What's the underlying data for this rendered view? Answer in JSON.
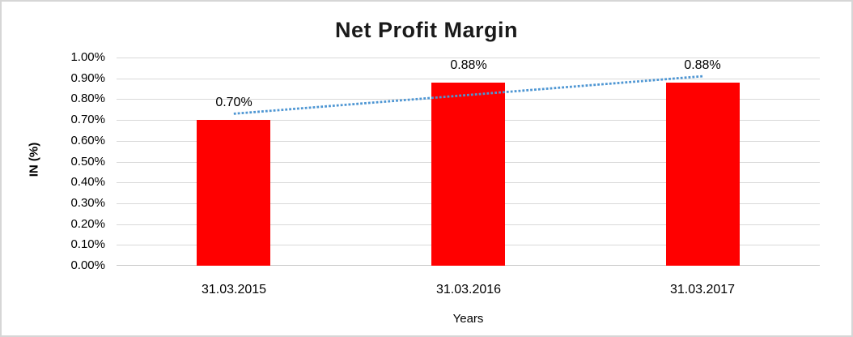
{
  "window": {
    "background": "#ffffff",
    "frame_border_color": "#d6d6d6"
  },
  "chart_data": {
    "type": "bar",
    "title": "Net Profit Margin",
    "categories": [
      "31.03.2015",
      "31.03.2016",
      "31.03.2017"
    ],
    "values": [
      0.7,
      0.88,
      0.88
    ],
    "value_labels": [
      "0.70%",
      "0.88%",
      "0.88%"
    ],
    "xlabel": "Years",
    "ylabel": "IN (%)",
    "ylim": [
      0,
      1.0
    ],
    "ytick_step": 0.1,
    "ytick_labels": [
      "0.00%",
      "0.10%",
      "0.20%",
      "0.30%",
      "0.40%",
      "0.50%",
      "0.60%",
      "0.70%",
      "0.80%",
      "0.90%",
      "1.00%"
    ],
    "grid": true,
    "legend": "none",
    "bar_color": "#ff0000",
    "gridline_color": "#d9d9d9",
    "axisline_color": "#c6c6c6",
    "label_color": "#000000",
    "trendline": {
      "type": "linear",
      "style": "dotted",
      "color": "#4e96d3",
      "start_value": 0.73,
      "end_value": 0.91
    }
  }
}
